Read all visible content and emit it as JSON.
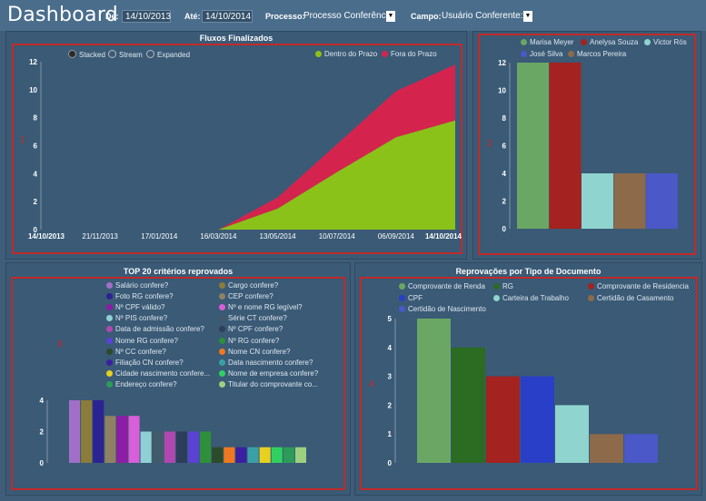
{
  "header": {
    "title": "Dashboard",
    "de_label": "De:",
    "de_value": "14/10/2013",
    "ate_label": "Até:",
    "ate_value": "14/10/2014",
    "processo_label": "Processo:",
    "processo_value": "Processo Conferência",
    "campo_label": "Campo:",
    "campo_value": "Usuário Conferente:"
  },
  "panels": {
    "p1": {
      "title": "Fluxos Finalizados",
      "marker": "1",
      "modes": [
        "Stacked",
        "Stream",
        "Expanded"
      ]
    },
    "p2": {
      "marker": "2"
    },
    "p3": {
      "title": "TOP 20 critérios reprovados",
      "marker": "3"
    },
    "p4": {
      "title": "Reprovações por Tipo de Documento",
      "marker": "4"
    }
  },
  "chart_data": [
    {
      "type": "area",
      "title": "Fluxos Finalizados",
      "x": [
        "14/10/2013",
        "21/11/2013",
        "17/01/2014",
        "16/03/2014",
        "13/05/2014",
        "10/07/2014",
        "06/09/2014",
        "14/10/2014"
      ],
      "series": [
        {
          "name": "Dentro do Prazo",
          "color": "#8bc21a",
          "values": [
            0,
            0,
            0,
            0,
            1.5,
            4.1,
            6.6,
            7.8
          ]
        },
        {
          "name": "Fora do Prazo",
          "color": "#d4244e",
          "values": [
            0,
            0,
            0,
            0,
            0.8,
            2.0,
            3.3,
            4.0
          ]
        }
      ],
      "ylim": [
        0,
        12
      ],
      "yticks": [
        "0",
        "2",
        "4",
        "6",
        "8",
        "10",
        "12"
      ],
      "xticks": [
        "14/10/2013",
        "21/11/2013",
        "17/01/2014",
        "16/03/2014",
        "13/05/2014",
        "10/07/2014",
        "06/09/2014",
        "14/10/2014"
      ]
    },
    {
      "type": "bar",
      "categories": [
        "Marisa Meyer",
        "Anelysa Souza",
        "Victor Rós",
        "José Silva",
        "Marcos Pereira"
      ],
      "values": [
        12,
        12,
        4,
        4,
        4
      ],
      "colors": [
        "#6aa764",
        "#a4221f",
        "#8fd4cf",
        "#4a58c8",
        "#8d6a4a"
      ],
      "bar_order": [
        0,
        1,
        2,
        4,
        3
      ],
      "ylim": [
        0,
        12
      ],
      "yticks": [
        "0",
        "2",
        "4",
        "6",
        "8",
        "10",
        "12"
      ]
    },
    {
      "type": "bar",
      "title": "TOP 20 critérios reprovados",
      "categories": [
        "Salário confere?",
        "Cargo confere?",
        "Foto RG confere?",
        "CEP confere?",
        "Nº CPF válido?",
        "Nº e nome RG legível?",
        "Nº PIS confere?",
        "Série CT confere?",
        "Data de admissão confere?",
        "Nº CPF confere?",
        "Nome RG confere?",
        "Nº RG confere?",
        "Nº CC confere?",
        "Nome CN confere?",
        "Filiação CN confere?",
        "Data nascimento confere?",
        "Cidade nascimento confere...",
        "Nome de empresa confere?",
        "Endereço confere?",
        "Titular do comprovante co..."
      ],
      "colors": [
        "#a16fc8",
        "#8b7c3a",
        "#2c2392",
        "#8f8262",
        "#8e1ca6",
        "#d75fd9",
        "#8fd0d4",
        "#425b6a",
        "#b048b0",
        "#2c3e5a",
        "#5a42d4",
        "#2f8f3a",
        "#2b4b2a",
        "#ef7820",
        "#3a20a0",
        "#3aa0a8",
        "#e8d020",
        "#30d060",
        "#2d9b5a",
        "#9cd080"
      ],
      "values": [
        4,
        4,
        4,
        3,
        3,
        3,
        2,
        2,
        2,
        2,
        2,
        2,
        1,
        1,
        1,
        1,
        1,
        1,
        1,
        1
      ],
      "ylim": [
        0,
        4
      ],
      "yticks": [
        "0",
        "2",
        "4"
      ]
    },
    {
      "type": "bar",
      "title": "Reprovações por Tipo de Documento",
      "categories": [
        "Comprovante de Renda",
        "RG",
        "Comprovante de Residencia",
        "CPF",
        "Carteira de Trabalho",
        "Certidão de Casamento",
        "Certidão de Nascimento"
      ],
      "colors": [
        "#6aa764",
        "#2b6b22",
        "#a4221f",
        "#2a3fc8",
        "#8fd4cf",
        "#8d6a4a",
        "#4a58c8"
      ],
      "values": [
        5,
        4,
        3,
        3,
        2,
        1,
        1
      ],
      "ylim": [
        0,
        5
      ],
      "yticks": [
        "0",
        "1",
        "2",
        "3",
        "4",
        "5"
      ]
    }
  ]
}
